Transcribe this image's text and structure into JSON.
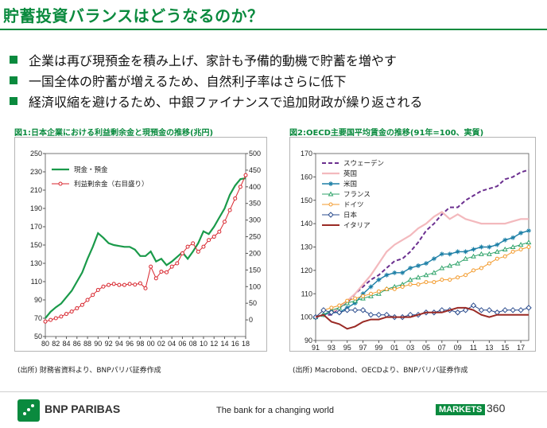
{
  "page": {
    "title": "貯蓄投資バランスはどうなるのか？",
    "bullets": [
      "企業は再び現預金を積み上げ、家計も予備的動機で貯蓄を増やす",
      "一国全体の貯蓄が増えるため、自然利子率はさらに低下",
      "経済収縮を避けるため、中銀ファイナンスで追加財政が繰り返される"
    ],
    "footer": {
      "logo_text": "BNP PARIBAS",
      "tagline": "The bank for a changing world",
      "markets_badge": "MARKETS",
      "markets_number": "360"
    },
    "chart1_title": "図1:日本企業における利益剰余金と現預金の推移(兆円)",
    "chart1_source": "(出所) 財務省資料より、BNPパリバ証券作成",
    "chart2_title": "図2:OECD主要国平均賃金の推移(91年=100、実質)",
    "chart2_source": "(出所) Macrobond、OECDより、BNPパリバ証券作成"
  },
  "chart_data": [
    {
      "type": "line",
      "title": "図1:日本企業における利益剰余金と現預金の推移(兆円)",
      "x": [
        "80",
        "81",
        "82",
        "83",
        "84",
        "85",
        "86",
        "87",
        "88",
        "89",
        "90",
        "91",
        "92",
        "93",
        "94",
        "95",
        "96",
        "97",
        "98",
        "99",
        "00",
        "01",
        "02",
        "03",
        "04",
        "05",
        "06",
        "07",
        "08",
        "09",
        "10",
        "11",
        "12",
        "13",
        "14",
        "15",
        "16",
        "17",
        "18"
      ],
      "x_tick_labels": [
        "80",
        "82",
        "84",
        "86",
        "88",
        "90",
        "92",
        "94",
        "96",
        "98",
        "00",
        "02",
        "04",
        "06",
        "08",
        "10",
        "12",
        "14",
        "16",
        "18"
      ],
      "ylim_left": [
        50,
        250
      ],
      "yticks_left": [
        50,
        70,
        90,
        110,
        130,
        150,
        170,
        190,
        210,
        230,
        250
      ],
      "ylim_right": [
        -50,
        500
      ],
      "yticks_right": [
        0,
        50,
        100,
        150,
        200,
        250,
        300,
        350,
        400,
        450,
        500
      ],
      "legend": "top-left",
      "series": [
        {
          "name": "現金・預金",
          "axis": "left",
          "color": "#1a9a4a",
          "values": [
            70,
            77,
            82,
            86,
            93,
            100,
            110,
            120,
            135,
            148,
            163,
            158,
            152,
            150,
            149,
            148,
            148,
            145,
            138,
            138,
            143,
            132,
            135,
            128,
            132,
            137,
            142,
            135,
            143,
            152,
            165,
            162,
            170,
            180,
            190,
            205,
            215,
            222,
            223
          ]
        },
        {
          "name": "利益剰余金（右目盛り）",
          "axis": "right",
          "color": "#d8262e",
          "values": [
            -5,
            0,
            5,
            10,
            18,
            25,
            35,
            45,
            60,
            75,
            90,
            100,
            105,
            108,
            105,
            105,
            108,
            106,
            110,
            95,
            160,
            125,
            145,
            143,
            160,
            170,
            200,
            220,
            230,
            205,
            220,
            240,
            250,
            265,
            295,
            330,
            365,
            400,
            435
          ]
        }
      ]
    },
    {
      "type": "line",
      "title": "図2:OECD主要国平均賃金の推移(91年=100、実質)",
      "x": [
        "91",
        "92",
        "93",
        "94",
        "95",
        "96",
        "97",
        "98",
        "99",
        "00",
        "01",
        "02",
        "03",
        "04",
        "05",
        "06",
        "07",
        "08",
        "09",
        "10",
        "11",
        "12",
        "13",
        "14",
        "15",
        "16",
        "17",
        "18"
      ],
      "x_tick_labels": [
        "91",
        "93",
        "95",
        "97",
        "99",
        "01",
        "03",
        "05",
        "07",
        "09",
        "11",
        "13",
        "15",
        "17"
      ],
      "ylim": [
        90,
        170
      ],
      "yticks": [
        90,
        100,
        110,
        120,
        130,
        140,
        150,
        160,
        170
      ],
      "legend": "top-left",
      "series": [
        {
          "name": "スウェーデン",
          "color": "#6b2f8f",
          "dashed": true,
          "values": [
            100,
            101,
            101,
            104,
            106,
            110,
            113,
            116,
            118,
            121,
            124,
            125,
            128,
            132,
            137,
            140,
            144,
            147,
            147,
            150,
            152,
            154,
            155,
            156,
            159,
            160,
            162,
            163
          ]
        },
        {
          "name": "英国",
          "color": "#f3b9bd",
          "values": [
            100,
            101,
            102,
            104,
            107,
            110,
            114,
            118,
            123,
            128,
            131,
            133,
            135,
            138,
            140,
            143,
            145,
            142,
            144,
            142,
            141,
            140,
            140,
            140,
            140,
            141,
            142,
            142
          ]
        },
        {
          "name": "米国",
          "color": "#1c7fa6",
          "values": [
            100,
            101,
            102,
            102,
            104,
            106,
            110,
            113,
            116,
            118,
            119,
            119,
            121,
            122,
            123,
            125,
            127,
            127,
            128,
            128,
            129,
            130,
            130,
            131,
            133,
            134,
            136,
            137
          ]
        },
        {
          "name": "フランス",
          "color": "#2fa36a",
          "values": [
            100,
            101,
            103,
            104,
            106,
            107,
            108,
            109,
            110,
            112,
            113,
            114,
            116,
            117,
            118,
            119,
            121,
            122,
            123,
            125,
            126,
            127,
            127,
            128,
            129,
            130,
            131,
            132
          ]
        },
        {
          "name": "ドイツ",
          "color": "#f39a2b",
          "values": [
            100,
            103,
            104,
            105,
            107,
            108,
            109,
            110,
            111,
            112,
            112,
            113,
            114,
            114,
            115,
            115,
            116,
            116,
            117,
            118,
            120,
            121,
            123,
            125,
            126,
            128,
            129,
            130
          ]
        },
        {
          "name": "日本",
          "color": "#2a4b8d",
          "values": [
            100,
            103,
            102,
            102,
            103,
            103,
            103,
            101,
            101,
            101,
            100,
            100,
            101,
            101,
            102,
            102,
            103,
            103,
            102,
            103,
            105,
            103,
            103,
            102,
            103,
            103,
            103,
            104
          ]
        },
        {
          "name": "イタリア",
          "color": "#9a2a25",
          "values": [
            100,
            101,
            98,
            97,
            95,
            96,
            98,
            99,
            99,
            100,
            100,
            100,
            100,
            101,
            102,
            102,
            102,
            103,
            104,
            104,
            103,
            101,
            100,
            101,
            101,
            101,
            101,
            101
          ]
        }
      ]
    }
  ]
}
